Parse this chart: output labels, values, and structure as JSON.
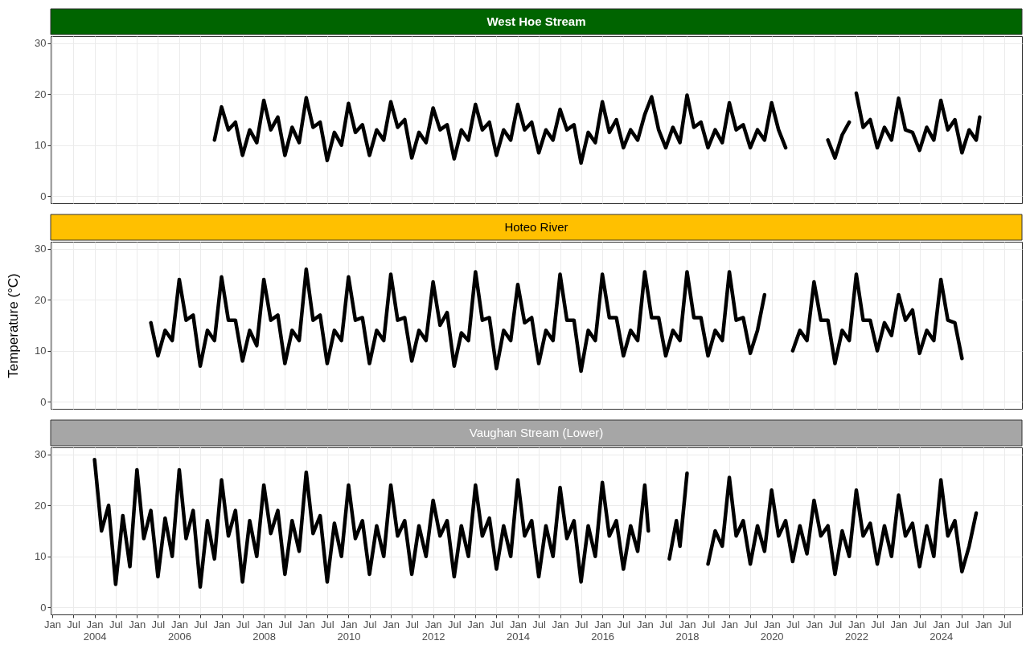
{
  "chart_data": [
    {
      "type": "line",
      "title": "West Hoe Stream",
      "xlim": [
        "2002-12-18",
        "2025-12-01"
      ],
      "ylim": [
        -1.4,
        31.4
      ],
      "yticks": [
        0,
        10,
        20,
        30
      ],
      "grid": true,
      "tick_labels": "y",
      "xticks": [
        {
          "value": "2003-01",
          "label": null
        },
        {
          "value": "2003-07",
          "label": null
        },
        {
          "value": "2004-01",
          "label": null
        },
        {
          "value": "2004-07",
          "label": null
        },
        {
          "value": "2005-01",
          "label": null
        },
        {
          "value": "2005-07",
          "label": null
        },
        {
          "value": "2006-01",
          "label": null
        },
        {
          "value": "2006-07",
          "label": null
        },
        {
          "value": "2007-01",
          "label": null
        },
        {
          "value": "2007-07",
          "label": null
        },
        {
          "value": "2008-01",
          "label": null
        },
        {
          "value": "2008-07",
          "label": null
        },
        {
          "value": "2009-01",
          "label": null
        },
        {
          "value": "2009-07",
          "label": null
        },
        {
          "value": "2010-01",
          "label": null
        },
        {
          "value": "2010-07",
          "label": null
        },
        {
          "value": "2011-01",
          "label": null
        },
        {
          "value": "2011-07",
          "label": null
        },
        {
          "value": "2012-01",
          "label": null
        },
        {
          "value": "2012-07",
          "label": null
        },
        {
          "value": "2013-01",
          "label": null
        },
        {
          "value": "2013-07",
          "label": null
        },
        {
          "value": "2014-01",
          "label": null
        },
        {
          "value": "2014-07",
          "label": null
        },
        {
          "value": "2015-01",
          "label": null
        },
        {
          "value": "2015-07",
          "label": null
        },
        {
          "value": "2016-01",
          "label": null
        },
        {
          "value": "2016-07",
          "label": null
        },
        {
          "value": "2017-01",
          "label": null
        },
        {
          "value": "2017-07",
          "label": null
        },
        {
          "value": "2018-01",
          "label": null
        },
        {
          "value": "2018-07",
          "label": null
        },
        {
          "value": "2019-01",
          "label": null
        },
        {
          "value": "2019-07",
          "label": null
        },
        {
          "value": "2020-01",
          "label": null
        },
        {
          "value": "2020-07",
          "label": null
        },
        {
          "value": "2021-01",
          "label": null
        },
        {
          "value": "2021-07",
          "label": null
        },
        {
          "value": "2022-01",
          "label": null
        },
        {
          "value": "2022-07",
          "label": null
        },
        {
          "value": "2023-01",
          "label": null
        },
        {
          "value": "2023-07",
          "label": null
        },
        {
          "value": "2024-01",
          "label": null
        },
        {
          "value": "2024-07",
          "label": null
        },
        {
          "value": "2025-01",
          "label": null
        },
        {
          "value": "2025-07",
          "label": null
        }
      ],
      "series": [
        {
          "color": "#000000",
          "x": [
            "2006-11",
            "2007-01",
            "2007-03",
            "2007-05",
            "2007-07",
            "2007-09",
            "2007-11",
            "2008-01",
            "2008-03",
            "2008-05",
            "2008-07",
            "2008-09",
            "2008-11",
            "2009-01",
            "2009-03",
            "2009-05",
            "2009-07",
            "2009-09",
            "2009-11",
            "2010-01",
            "2010-03",
            "2010-05",
            "2010-07",
            "2010-09",
            "2010-11",
            "2011-01",
            "2011-03",
            "2011-05",
            "2011-07",
            "2011-09",
            "2011-11",
            "2012-01",
            "2012-03",
            "2012-05",
            "2012-07",
            "2012-09",
            "2012-11",
            "2013-01",
            "2013-03",
            "2013-05",
            "2013-07",
            "2013-09",
            "2013-11",
            "2014-01",
            "2014-03",
            "2014-05",
            "2014-07",
            "2014-09",
            "2014-11",
            "2015-01",
            "2015-03",
            "2015-05",
            "2015-07",
            "2015-09",
            "2015-11",
            "2016-01",
            "2016-03",
            "2016-05",
            "2016-07",
            "2016-09",
            "2016-11",
            "2017-01",
            "2017-03",
            "2017-05",
            "2017-07",
            "2017-09",
            "2017-11",
            "2018-01",
            "2018-03",
            "2018-05",
            "2018-07",
            "2018-09",
            "2018-11",
            "2019-01",
            "2019-03",
            "2019-05",
            "2019-07",
            "2019-09",
            "2019-11",
            "2020-01",
            "2020-03",
            "2020-05",
            "2021-01",
            "2021-05",
            "2021-07",
            "2021-09",
            "2021-11",
            "2021-12",
            "2022-01",
            "2022-03",
            "2022-05",
            "2022-07",
            "2022-09",
            "2022-11",
            "2023-01",
            "2023-03",
            "2023-05",
            "2023-07",
            "2023-09",
            "2023-11",
            "2024-01",
            "2024-03",
            "2024-05",
            "2024-07",
            "2024-09",
            "2024-11",
            "2024-12"
          ],
          "values": [
            11,
            17.5,
            13,
            14.5,
            8,
            13,
            10.5,
            18.8,
            13,
            15.5,
            8,
            13.5,
            10.5,
            19.3,
            13.5,
            14.5,
            7,
            12.5,
            10,
            18.2,
            12.5,
            14,
            8,
            13,
            11,
            18.5,
            13.5,
            15,
            7.5,
            12.5,
            10.5,
            17.3,
            13,
            14,
            7.3,
            13,
            11,
            18,
            13,
            14.5,
            8,
            13,
            11,
            18,
            13,
            14.5,
            8.5,
            13,
            11,
            17,
            13,
            14,
            6.5,
            12.5,
            10.5,
            18.5,
            12.5,
            15,
            9.5,
            13,
            11,
            16,
            19.5,
            13,
            9.5,
            13.5,
            10.5,
            19.8,
            13.5,
            14.5,
            9.5,
            13,
            10.5,
            18.3,
            13,
            14,
            9.5,
            13,
            11,
            18.3,
            13,
            9.5,
            null,
            11,
            7.5,
            12,
            14.5,
            null,
            20.2,
            13.5,
            15,
            9.5,
            13.5,
            11,
            19.2,
            13,
            12.5,
            9,
            13.5,
            11,
            18.8,
            13,
            15,
            8.5,
            13,
            11,
            15.5
          ]
        }
      ]
    },
    {
      "type": "line",
      "title": "Hoteo River",
      "ylabel": "Temperature (°C)",
      "xlim": [
        "2002-12-18",
        "2025-12-01"
      ],
      "ylim": [
        -1.4,
        31.4
      ],
      "yticks": [
        0,
        10,
        20,
        30
      ],
      "grid": true,
      "tick_labels": "y",
      "xticks": [
        {
          "value": "2003-01",
          "label": null
        },
        {
          "value": "2003-07",
          "label": null
        },
        {
          "value": "2004-01",
          "label": null
        },
        {
          "value": "2004-07",
          "label": null
        },
        {
          "value": "2005-01",
          "label": null
        },
        {
          "value": "2005-07",
          "label": null
        },
        {
          "value": "2006-01",
          "label": null
        },
        {
          "value": "2006-07",
          "label": null
        },
        {
          "value": "2007-01",
          "label": null
        },
        {
          "value": "2007-07",
          "label": null
        },
        {
          "value": "2008-01",
          "label": null
        },
        {
          "value": "2008-07",
          "label": null
        },
        {
          "value": "2009-01",
          "label": null
        },
        {
          "value": "2009-07",
          "label": null
        },
        {
          "value": "2010-01",
          "label": null
        },
        {
          "value": "2010-07",
          "label": null
        },
        {
          "value": "2011-01",
          "label": null
        },
        {
          "value": "2011-07",
          "label": null
        },
        {
          "value": "2012-01",
          "label": null
        },
        {
          "value": "2012-07",
          "label": null
        },
        {
          "value": "2013-01",
          "label": null
        },
        {
          "value": "2013-07",
          "label": null
        },
        {
          "value": "2014-01",
          "label": null
        },
        {
          "value": "2014-07",
          "label": null
        },
        {
          "value": "2015-01",
          "label": null
        },
        {
          "value": "2015-07",
          "label": null
        },
        {
          "value": "2016-01",
          "label": null
        },
        {
          "value": "2016-07",
          "label": null
        },
        {
          "value": "2017-01",
          "label": null
        },
        {
          "value": "2017-07",
          "label": null
        },
        {
          "value": "2018-01",
          "label": null
        },
        {
          "value": "2018-07",
          "label": null
        },
        {
          "value": "2019-01",
          "label": null
        },
        {
          "value": "2019-07",
          "label": null
        },
        {
          "value": "2020-01",
          "label": null
        },
        {
          "value": "2020-07",
          "label": null
        },
        {
          "value": "2021-01",
          "label": null
        },
        {
          "value": "2021-07",
          "label": null
        },
        {
          "value": "2022-01",
          "label": null
        },
        {
          "value": "2022-07",
          "label": null
        },
        {
          "value": "2023-01",
          "label": null
        },
        {
          "value": "2023-07",
          "label": null
        },
        {
          "value": "2024-01",
          "label": null
        },
        {
          "value": "2024-07",
          "label": null
        },
        {
          "value": "2025-01",
          "label": null
        },
        {
          "value": "2025-07",
          "label": null
        }
      ],
      "series": [
        {
          "color": "#000000",
          "x": [
            "2005-05",
            "2005-07",
            "2005-09",
            "2005-11",
            "2006-01",
            "2006-03",
            "2006-05",
            "2006-07",
            "2006-09",
            "2006-11",
            "2007-01",
            "2007-03",
            "2007-05",
            "2007-07",
            "2007-09",
            "2007-11",
            "2008-01",
            "2008-03",
            "2008-05",
            "2008-07",
            "2008-09",
            "2008-11",
            "2009-01",
            "2009-03",
            "2009-05",
            "2009-07",
            "2009-09",
            "2009-11",
            "2010-01",
            "2010-03",
            "2010-05",
            "2010-07",
            "2010-09",
            "2010-11",
            "2011-01",
            "2011-03",
            "2011-05",
            "2011-07",
            "2011-09",
            "2011-11",
            "2012-01",
            "2012-03",
            "2012-05",
            "2012-07",
            "2012-09",
            "2012-11",
            "2013-01",
            "2013-03",
            "2013-05",
            "2013-07",
            "2013-09",
            "2013-11",
            "2014-01",
            "2014-03",
            "2014-05",
            "2014-07",
            "2014-09",
            "2014-11",
            "2015-01",
            "2015-03",
            "2015-05",
            "2015-07",
            "2015-09",
            "2015-11",
            "2016-01",
            "2016-03",
            "2016-05",
            "2016-07",
            "2016-09",
            "2016-11",
            "2017-01",
            "2017-03",
            "2017-05",
            "2017-07",
            "2017-09",
            "2017-11",
            "2018-01",
            "2018-03",
            "2018-05",
            "2018-07",
            "2018-09",
            "2018-11",
            "2019-01",
            "2019-03",
            "2019-05",
            "2019-07",
            "2019-09",
            "2019-11",
            "2020-04",
            "2020-07",
            "2020-09",
            "2020-11",
            "2021-01",
            "2021-03",
            "2021-05",
            "2021-07",
            "2021-09",
            "2021-11",
            "2022-01",
            "2022-03",
            "2022-05",
            "2022-07",
            "2022-09",
            "2022-11",
            "2023-01",
            "2023-03",
            "2023-05",
            "2023-07",
            "2023-09",
            "2023-11",
            "2024-01",
            "2024-03",
            "2024-05",
            "2024-07"
          ],
          "values": [
            15.5,
            9,
            14,
            12,
            24,
            16,
            17,
            7,
            14,
            12,
            24.5,
            16,
            16,
            8,
            14,
            11,
            24,
            16,
            17,
            7.5,
            14,
            12,
            26,
            16,
            17,
            7.5,
            14,
            12,
            24.5,
            16,
            16.5,
            7.5,
            14,
            12,
            25,
            16,
            16.5,
            8,
            14,
            12,
            23.5,
            15,
            17.5,
            7,
            13.5,
            12,
            25.5,
            16,
            16.5,
            6.5,
            14,
            12,
            23,
            15.5,
            16.5,
            7.5,
            14,
            12,
            25,
            16,
            16,
            6,
            14,
            12,
            25,
            16.5,
            16.5,
            9,
            14,
            12,
            25.5,
            16.5,
            16.5,
            9,
            14,
            12,
            25.5,
            16.5,
            16.5,
            9,
            14,
            12,
            25.5,
            16,
            16.5,
            9.5,
            14,
            21,
            null,
            10,
            14,
            12,
            23.5,
            16,
            16,
            7.5,
            14,
            12,
            25,
            16,
            16,
            10,
            15.5,
            13,
            21,
            16,
            18,
            9.5,
            14,
            12,
            24,
            16,
            15.5,
            8.5
          ]
        }
      ]
    },
    {
      "type": "line",
      "title": "Vaughan Stream (Lower)",
      "xlim": [
        "2002-12-18",
        "2025-12-01"
      ],
      "ylim": [
        -1.4,
        31.4
      ],
      "yticks": [
        0,
        10,
        20,
        30
      ],
      "grid": true,
      "xticks": [
        {
          "value": "2003-01",
          "label": "Jan"
        },
        {
          "value": "2003-07",
          "label": "Jul"
        },
        {
          "value": "2004-01",
          "label": "Jan\n2004"
        },
        {
          "value": "2004-07",
          "label": "Jul"
        },
        {
          "value": "2005-01",
          "label": "Jan"
        },
        {
          "value": "2005-07",
          "label": "Jul"
        },
        {
          "value": "2006-01",
          "label": "Jan\n2006"
        },
        {
          "value": "2006-07",
          "label": "Jul"
        },
        {
          "value": "2007-01",
          "label": "Jan"
        },
        {
          "value": "2007-07",
          "label": "Jul"
        },
        {
          "value": "2008-01",
          "label": "Jan\n2008"
        },
        {
          "value": "2008-07",
          "label": "Jul"
        },
        {
          "value": "2009-01",
          "label": "Jan"
        },
        {
          "value": "2009-07",
          "label": "Jul"
        },
        {
          "value": "2010-01",
          "label": "Jan\n2010"
        },
        {
          "value": "2010-07",
          "label": "Jul"
        },
        {
          "value": "2011-01",
          "label": "Jan"
        },
        {
          "value": "2011-07",
          "label": "Jul"
        },
        {
          "value": "2012-01",
          "label": "Jan\n2012"
        },
        {
          "value": "2012-07",
          "label": "Jul"
        },
        {
          "value": "2013-01",
          "label": "Jan"
        },
        {
          "value": "2013-07",
          "label": "Jul"
        },
        {
          "value": "2014-01",
          "label": "Jan\n2014"
        },
        {
          "value": "2014-07",
          "label": "Jul"
        },
        {
          "value": "2015-01",
          "label": "Jan"
        },
        {
          "value": "2015-07",
          "label": "Jul"
        },
        {
          "value": "2016-01",
          "label": "Jan\n2016"
        },
        {
          "value": "2016-07",
          "label": "Jul"
        },
        {
          "value": "2017-01",
          "label": "Jan"
        },
        {
          "value": "2017-07",
          "label": "Jul"
        },
        {
          "value": "2018-01",
          "label": "Jan\n2018"
        },
        {
          "value": "2018-07",
          "label": "Jul"
        },
        {
          "value": "2019-01",
          "label": "Jan"
        },
        {
          "value": "2019-07",
          "label": "Jul"
        },
        {
          "value": "2020-01",
          "label": "Jan\n2020"
        },
        {
          "value": "2020-07",
          "label": "Jul"
        },
        {
          "value": "2021-01",
          "label": "Jan"
        },
        {
          "value": "2021-07",
          "label": "Jul"
        },
        {
          "value": "2022-01",
          "label": "Jan\n2022"
        },
        {
          "value": "2022-07",
          "label": "Jul"
        },
        {
          "value": "2023-01",
          "label": "Jan"
        },
        {
          "value": "2023-07",
          "label": "Jul"
        },
        {
          "value": "2024-01",
          "label": "Jan\n2024"
        },
        {
          "value": "2024-07",
          "label": "Jul"
        },
        {
          "value": "2025-01",
          "label": "Jan"
        },
        {
          "value": "2025-07",
          "label": "Jul"
        }
      ],
      "series": [
        {
          "color": "#000000",
          "x": [
            "2004-01",
            "2004-03",
            "2004-05",
            "2004-07",
            "2004-09",
            "2004-11",
            "2005-01",
            "2005-03",
            "2005-05",
            "2005-07",
            "2005-09",
            "2005-11",
            "2006-01",
            "2006-03",
            "2006-05",
            "2006-07",
            "2006-09",
            "2006-11",
            "2007-01",
            "2007-03",
            "2007-05",
            "2007-07",
            "2007-09",
            "2007-11",
            "2008-01",
            "2008-03",
            "2008-05",
            "2008-07",
            "2008-09",
            "2008-11",
            "2009-01",
            "2009-03",
            "2009-05",
            "2009-07",
            "2009-09",
            "2009-11",
            "2010-01",
            "2010-03",
            "2010-05",
            "2010-07",
            "2010-09",
            "2010-11",
            "2011-01",
            "2011-03",
            "2011-05",
            "2011-07",
            "2011-09",
            "2011-11",
            "2012-01",
            "2012-03",
            "2012-05",
            "2012-07",
            "2012-09",
            "2012-11",
            "2013-01",
            "2013-03",
            "2013-05",
            "2013-07",
            "2013-09",
            "2013-11",
            "2014-01",
            "2014-03",
            "2014-05",
            "2014-07",
            "2014-09",
            "2014-11",
            "2015-01",
            "2015-03",
            "2015-05",
            "2015-07",
            "2015-09",
            "2015-11",
            "2016-01",
            "2016-03",
            "2016-05",
            "2016-07",
            "2016-09",
            "2016-11",
            "2017-01",
            "2017-02",
            "2017-05",
            "2017-08",
            "2017-10",
            "2017-11",
            "2018-01",
            "2018-04",
            "2018-07",
            "2018-09",
            "2018-11",
            "2019-01",
            "2019-03",
            "2019-05",
            "2019-07",
            "2019-09",
            "2019-11",
            "2020-01",
            "2020-03",
            "2020-05",
            "2020-07",
            "2020-09",
            "2020-11",
            "2021-01",
            "2021-03",
            "2021-05",
            "2021-07",
            "2021-09",
            "2021-11",
            "2022-01",
            "2022-03",
            "2022-05",
            "2022-07",
            "2022-09",
            "2022-11",
            "2023-01",
            "2023-03",
            "2023-05",
            "2023-07",
            "2023-09",
            "2023-11",
            "2024-01",
            "2024-03",
            "2024-05",
            "2024-07",
            "2024-09",
            "2024-11"
          ],
          "values": [
            29,
            15,
            20,
            4.5,
            18,
            8,
            27,
            13.5,
            19,
            6,
            17.5,
            10,
            27,
            13.5,
            19,
            4,
            17,
            9.5,
            25,
            14,
            19,
            5,
            17,
            10,
            24,
            14.5,
            19,
            6.5,
            17,
            11,
            26.5,
            14.5,
            18,
            5,
            16.5,
            10,
            24,
            13.5,
            17,
            6.5,
            16,
            10,
            24,
            14,
            17,
            6.5,
            16,
            10,
            21,
            14,
            17,
            6,
            16,
            10,
            24,
            14,
            17.5,
            7.5,
            16,
            10,
            25,
            14,
            17,
            6,
            16,
            10,
            23.5,
            13.5,
            17,
            5,
            16,
            10,
            24.5,
            14,
            17,
            7.5,
            16,
            11,
            24,
            15,
            null,
            9.5,
            17,
            12,
            26.3,
            null,
            8.5,
            15,
            12,
            25.5,
            14,
            17,
            8.5,
            16,
            11,
            23,
            14,
            17,
            9,
            16,
            10.5,
            21,
            14,
            16,
            6.5,
            15,
            10,
            23,
            14,
            16.5,
            8.5,
            16,
            10,
            22,
            14,
            16.5,
            8,
            16,
            10,
            25,
            14,
            17,
            7,
            12,
            18.5
          ]
        }
      ]
    }
  ]
}
